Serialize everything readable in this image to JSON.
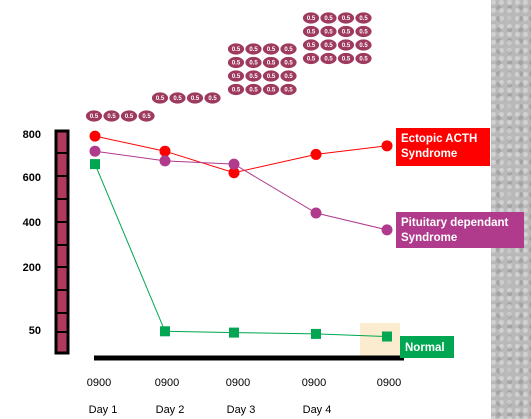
{
  "chart_data": {
    "type": "line",
    "x": [
      "0900",
      "0900",
      "0900",
      "0900",
      "0900"
    ],
    "day_labels": [
      "Day 1",
      "Day 2",
      "Day 3",
      "Day 4"
    ],
    "y_ticks": [
      "800",
      "600",
      "400",
      "200",
      "50"
    ],
    "series": [
      {
        "name": "Ectopic ACTH Syndrome",
        "label_lines": [
          "Ectopic ACTH",
          "Syndrome"
        ],
        "color": "#ff0000",
        "label_bg": "#ff0000",
        "marker": "circle",
        "values": [
          790,
          720,
          620,
          705,
          745
        ]
      },
      {
        "name": "Pituitary dependant Syndrome",
        "label_lines": [
          "Pituitary dependant",
          "Syndrome"
        ],
        "color": "#b03a8c",
        "label_bg": "#b03a8c",
        "marker": "circle",
        "values": [
          720,
          675,
          660,
          440,
          365
        ]
      },
      {
        "name": "Normal",
        "label_lines": [
          "Normal"
        ],
        "color": "#00a651",
        "label_bg": "#00a651",
        "marker": "square",
        "values": [
          660,
          45,
          40,
          35,
          25
        ]
      }
    ],
    "axis_color": "#000000",
    "scale_bar_color": "#b03a5b",
    "highlight_color": "#fbebcf",
    "pills": {
      "label": "0.5",
      "color": "#9e3a5e",
      "columns": [
        4,
        4,
        8,
        16
      ]
    }
  }
}
